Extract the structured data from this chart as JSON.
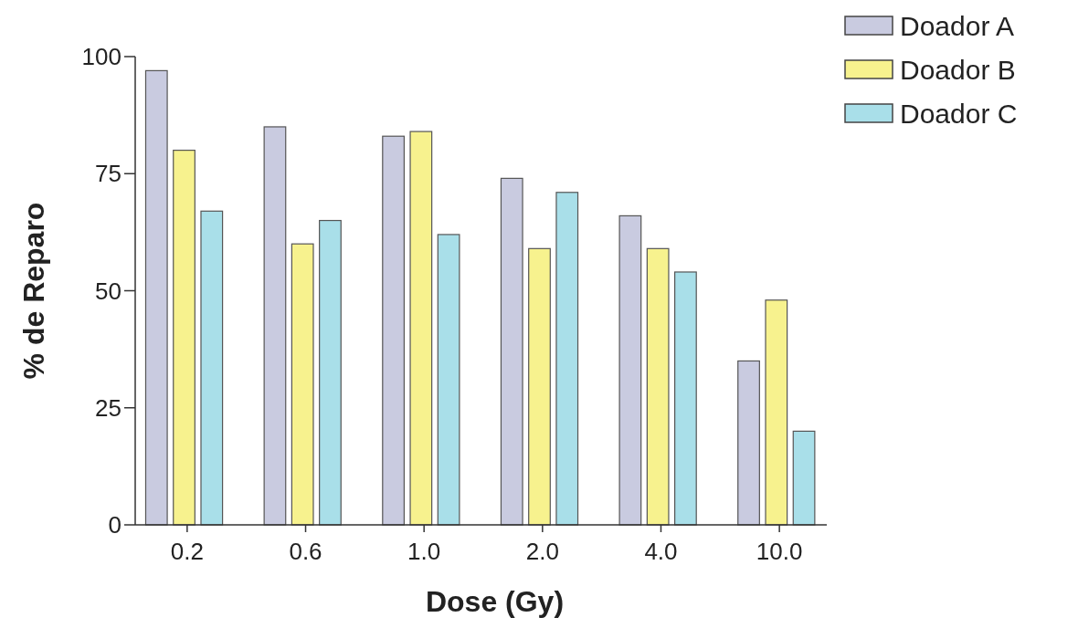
{
  "chart_data": {
    "type": "bar",
    "xlabel": "Dose (Gy)",
    "ylabel": "% de Reparo",
    "categories": [
      "0.2",
      "0.6",
      "1.0",
      "2.0",
      "4.0",
      "10.0"
    ],
    "series": [
      {
        "name": "Doador A",
        "color": "#c9cbe0",
        "values": [
          97,
          85,
          83,
          74,
          66,
          35
        ]
      },
      {
        "name": "Doador B",
        "color": "#f7f28e",
        "values": [
          80,
          60,
          84,
          59,
          59,
          48
        ]
      },
      {
        "name": "Doador C",
        "color": "#a9dfe9",
        "values": [
          67,
          65,
          62,
          71,
          54,
          20
        ]
      }
    ],
    "ylim": [
      0,
      100
    ],
    "yticks": [
      0,
      25,
      50,
      75,
      100
    ],
    "grid": false,
    "legend": "top right"
  }
}
